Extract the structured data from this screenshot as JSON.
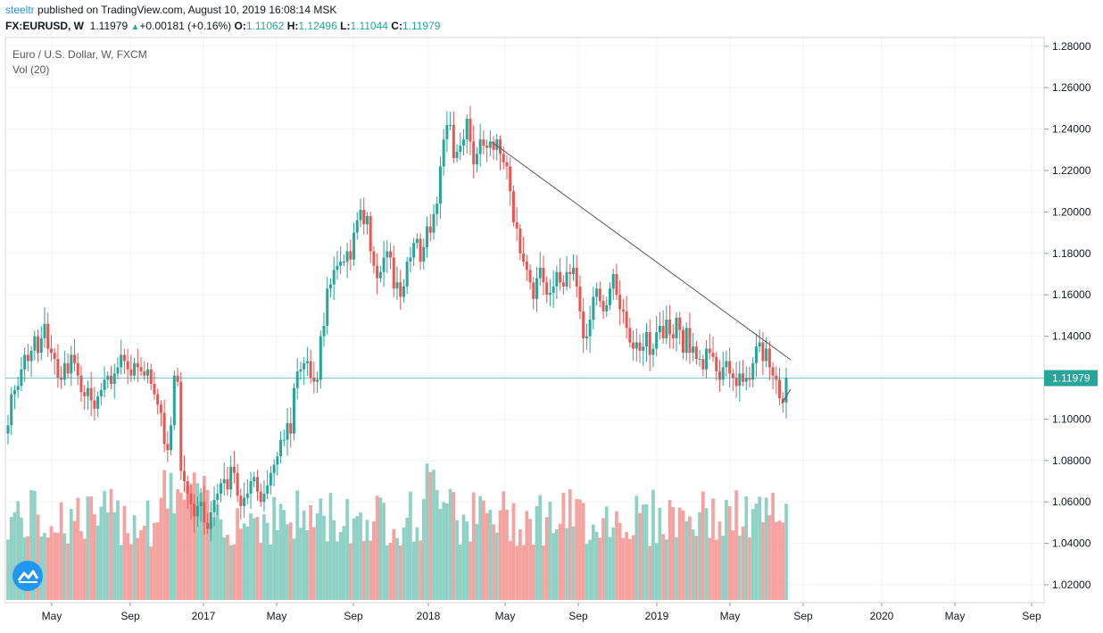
{
  "header": {
    "username": "steeltr",
    "published_text": " published on TradingView.com, August 10, 2019 16:08:14 MSK",
    "symbol": "FX:EURUSD, W",
    "last": "1.11979",
    "change": "+0.00181 (+0.16%)",
    "o_label": "O:",
    "o_value": "1.11062",
    "h_label": "H:",
    "h_value": "1.12496",
    "l_label": "L:",
    "l_value": "1.11044",
    "c_label": "C:",
    "c_value": "1.11979"
  },
  "legend": {
    "title": "Euro / U.S. Dollar, W, FXCM",
    "volume": "Vol (20)"
  },
  "logo_icon": "tradingview-logo-icon",
  "colors": {
    "up": "#26a69a",
    "down": "#ef5350",
    "vol_up": "#8fd1c5",
    "vol_down": "#f5a3a0",
    "price_line": "#26a69a",
    "price_label_bg": "#26a69a",
    "grid": "#f0f3fa",
    "trendline": "#555555"
  },
  "chart_data": {
    "type": "candlestick",
    "title": "Euro / U.S. Dollar, W, FXCM",
    "ylim": [
      1.01,
      1.285
    ],
    "y_ticks": [
      "1.28000",
      "1.26000",
      "1.24000",
      "1.22000",
      "1.20000",
      "1.18000",
      "1.16000",
      "1.14000",
      "1.12000",
      "1.10000",
      "1.08000",
      "1.06000",
      "1.04000",
      "1.02000"
    ],
    "x_ticks": [
      "May",
      "Sep",
      "2017",
      "May",
      "Sep",
      "2018",
      "May",
      "Sep",
      "2019",
      "May",
      "Sep",
      "2020",
      "May",
      "Sep"
    ],
    "current_price": "1.11979",
    "volume_indicator": "Vol (20)",
    "series_close": [
      1.097,
      1.112,
      1.114,
      1.116,
      1.124,
      1.131,
      1.128,
      1.133,
      1.14,
      1.132,
      1.139,
      1.146,
      1.134,
      1.132,
      1.129,
      1.12,
      1.119,
      1.127,
      1.122,
      1.131,
      1.127,
      1.121,
      1.113,
      1.111,
      1.115,
      1.109,
      1.105,
      1.111,
      1.114,
      1.119,
      1.121,
      1.117,
      1.122,
      1.125,
      1.131,
      1.128,
      1.124,
      1.121,
      1.127,
      1.125,
      1.123,
      1.121,
      1.124,
      1.117,
      1.112,
      1.107,
      1.103,
      1.088,
      1.085,
      1.097,
      1.121,
      1.118,
      1.075,
      1.07,
      1.064,
      1.059,
      1.053,
      1.058,
      1.06,
      1.05,
      1.047,
      1.055,
      1.061,
      1.064,
      1.069,
      1.071,
      1.066,
      1.077,
      1.074,
      1.063,
      1.058,
      1.062,
      1.064,
      1.07,
      1.072,
      1.065,
      1.06,
      1.064,
      1.068,
      1.074,
      1.078,
      1.082,
      1.09,
      1.09,
      1.098,
      1.093,
      1.115,
      1.123,
      1.124,
      1.127,
      1.128,
      1.12,
      1.118,
      1.119,
      1.14,
      1.145,
      1.163,
      1.165,
      1.172,
      1.174,
      1.176,
      1.176,
      1.181,
      1.177,
      1.19,
      1.196,
      1.201,
      1.194,
      1.198,
      1.181,
      1.174,
      1.168,
      1.171,
      1.178,
      1.181,
      1.178,
      1.163,
      1.166,
      1.159,
      1.164,
      1.176,
      1.178,
      1.185,
      1.187,
      1.176,
      1.183,
      1.193,
      1.19,
      1.199,
      1.204,
      1.222,
      1.235,
      1.242,
      1.242,
      1.226,
      1.229,
      1.232,
      1.235,
      1.245,
      1.234,
      1.223,
      1.228,
      1.235,
      1.232,
      1.231,
      1.234,
      1.23,
      1.235,
      1.228,
      1.224,
      1.222,
      1.21,
      1.195,
      1.192,
      1.18,
      1.176,
      1.172,
      1.166,
      1.158,
      1.168,
      1.173,
      1.166,
      1.16,
      1.161,
      1.164,
      1.171,
      1.166,
      1.164,
      1.171,
      1.17,
      1.173,
      1.164,
      1.152,
      1.139,
      1.14,
      1.148,
      1.159,
      1.163,
      1.157,
      1.152,
      1.155,
      1.163,
      1.17,
      1.16,
      1.153,
      1.152,
      1.144,
      1.137,
      1.134,
      1.137,
      1.133,
      1.135,
      1.142,
      1.131,
      1.134,
      1.142,
      1.145,
      1.139,
      1.148,
      1.141,
      1.139,
      1.149,
      1.143,
      1.132,
      1.144,
      1.132,
      1.135,
      1.129,
      1.129,
      1.124,
      1.134,
      1.132,
      1.13,
      1.123,
      1.119,
      1.125,
      1.128,
      1.122,
      1.12,
      1.116,
      1.122,
      1.118,
      1.12,
      1.119,
      1.127,
      1.135,
      1.137,
      1.128,
      1.134,
      1.125,
      1.121,
      1.119,
      1.11,
      1.108,
      1.12
    ]
  }
}
